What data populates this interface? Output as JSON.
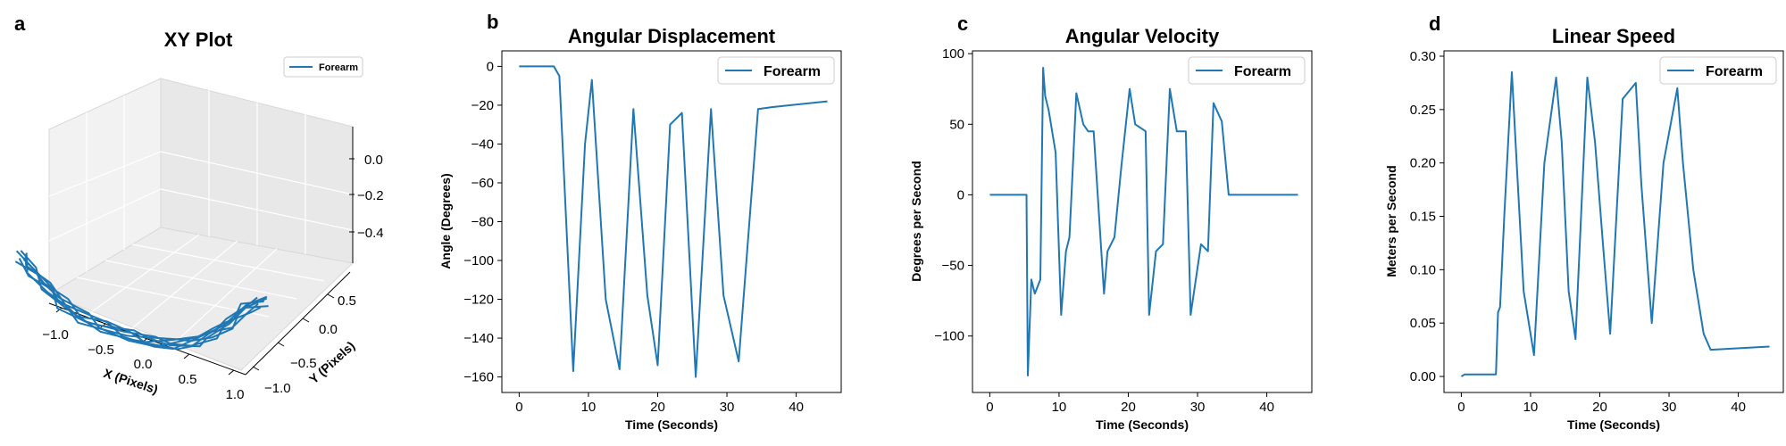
{
  "figure": {
    "line_color": "#1f77b4",
    "panels": [
      {
        "letter": "a",
        "title": "XY Plot",
        "legend": "Forearm"
      },
      {
        "letter": "b",
        "title": "Angular Displacement",
        "legend": "Forearm"
      },
      {
        "letter": "c",
        "title": "Angular Velocity",
        "legend": "Forearm"
      },
      {
        "letter": "d",
        "title": "Linear Speed",
        "legend": "Forearm"
      }
    ]
  },
  "chart_data": [
    {
      "type": "line",
      "subtype": "3d",
      "title": "XY Plot",
      "xlabel": "X (Pixels)",
      "ylabel": "Y (Pixels)",
      "zlabel": "",
      "xlim": [
        -1.0,
        1.0
      ],
      "ylim": [
        -1.0,
        0.5
      ],
      "zlim": [
        -0.5,
        0.1
      ],
      "xticks": [
        "−1.0",
        "−0.5",
        "0.0",
        "0.5",
        "1.0"
      ],
      "yticks": [
        "−1.0",
        "−0.5",
        "0.0",
        "0.5"
      ],
      "zticks": [
        "0.0",
        "−0.2",
        "−0.4"
      ],
      "legend": "top-right",
      "series": [
        {
          "name": "Forearm",
          "note_shape": "U-shaped trajectory, repeated passes",
          "x": [
            -0.95,
            -0.9,
            -0.8,
            -0.7,
            -0.55,
            -0.4,
            -0.2,
            0.0,
            0.2,
            0.4,
            0.55,
            0.7,
            0.85,
            1.0
          ],
          "y": [
            -0.6,
            -0.5,
            -0.4,
            -0.3,
            -0.2,
            -0.1,
            0.0,
            0.05,
            0.1,
            0.15,
            0.2,
            0.25,
            0.3,
            0.35
          ],
          "z": [
            0.05,
            -0.05,
            -0.15,
            -0.25,
            -0.33,
            -0.38,
            -0.42,
            -0.43,
            -0.42,
            -0.38,
            -0.32,
            -0.25,
            -0.15,
            -0.1
          ]
        }
      ]
    },
    {
      "type": "line",
      "title": "Angular Displacement",
      "xlabel": "Time (Seconds)",
      "ylabel": "Angle (Degrees)",
      "xlim": [
        -2.5,
        46.5
      ],
      "ylim": [
        -168,
        8
      ],
      "xticks": [
        0,
        10,
        20,
        30,
        40
      ],
      "yticks": [
        0,
        -20,
        -40,
        -60,
        -80,
        -100,
        -120,
        -140,
        -160
      ],
      "ytick_labels": [
        "0",
        "−20",
        "−40",
        "−60",
        "−80",
        "−100",
        "−120",
        "−140",
        "−160"
      ],
      "grid": false,
      "legend": "top-right",
      "series": [
        {
          "name": "Forearm",
          "x": [
            0,
            5,
            5.8,
            7.8,
            9.5,
            10.5,
            12.5,
            14.5,
            16.5,
            18.5,
            20,
            21.8,
            23.5,
            25.5,
            27.7,
            29.5,
            31.7,
            34.5,
            36.5,
            44.5
          ],
          "y": [
            0,
            0,
            -5,
            -157,
            -40,
            -7,
            -120,
            -156,
            -22,
            -118,
            -154,
            -30,
            -24,
            -160,
            -22,
            -118,
            -152,
            -22,
            -21,
            -18
          ]
        }
      ]
    },
    {
      "type": "line",
      "title": "Angular Velocity",
      "xlabel": "Time (Seconds)",
      "ylabel": "Degrees per Second",
      "xlim": [
        -2.5,
        46.5
      ],
      "ylim": [
        -140,
        102
      ],
      "xticks": [
        0,
        10,
        20,
        30,
        40
      ],
      "yticks": [
        100,
        50,
        0,
        -50,
        -100
      ],
      "ytick_labels": [
        "100",
        "50",
        "0",
        "−50",
        "−100"
      ],
      "grid": false,
      "legend": "top-right",
      "series": [
        {
          "name": "Forearm",
          "x": [
            0,
            5.3,
            5.5,
            6,
            6.5,
            7.3,
            7.7,
            8,
            8.5,
            9.5,
            10.3,
            11,
            11.5,
            12,
            12.5,
            13.5,
            14.2,
            15,
            16.5,
            17,
            18,
            19,
            20.2,
            21,
            22.5,
            23,
            24,
            25,
            26,
            27,
            28.3,
            29,
            30.5,
            31.5,
            32.3,
            33.5,
            34.5,
            36,
            44.5
          ],
          "y": [
            0,
            0,
            -128,
            -60,
            -70,
            -60,
            90,
            70,
            60,
            30,
            -85,
            -40,
            -30,
            20,
            72,
            50,
            45,
            45,
            -70,
            -40,
            -30,
            20,
            75,
            50,
            45,
            -85,
            -40,
            -35,
            75,
            45,
            45,
            -85,
            -35,
            -40,
            65,
            52,
            0,
            0,
            0
          ]
        }
      ]
    },
    {
      "type": "line",
      "title": "Linear Speed",
      "xlabel": "Time (Seconds)",
      "ylabel": "Meters per Second",
      "xlim": [
        -2.5,
        46.5
      ],
      "ylim": [
        -0.015,
        0.305
      ],
      "xticks": [
        0,
        10,
        20,
        30,
        40
      ],
      "yticks": [
        0.0,
        0.05,
        0.1,
        0.15,
        0.2,
        0.25,
        0.3
      ],
      "ytick_labels": [
        "0.00",
        "0.05",
        "0.10",
        "0.15",
        "0.20",
        "0.25",
        "0.30"
      ],
      "grid": false,
      "legend": "top-right",
      "series": [
        {
          "name": "Forearm",
          "x": [
            0,
            0.5,
            5,
            5.3,
            5.6,
            6.2,
            7.3,
            8,
            9,
            10.5,
            12,
            13.7,
            14.5,
            15.5,
            16.5,
            18.2,
            19.3,
            20.5,
            21.5,
            23.3,
            25.2,
            26,
            27.5,
            29.2,
            31.2,
            32,
            33.5,
            35,
            36,
            44.5
          ],
          "y": [
            0,
            0.002,
            0.002,
            0.06,
            0.065,
            0.15,
            0.285,
            0.2,
            0.08,
            0.02,
            0.2,
            0.28,
            0.22,
            0.08,
            0.035,
            0.28,
            0.22,
            0.12,
            0.04,
            0.26,
            0.275,
            0.18,
            0.05,
            0.2,
            0.27,
            0.2,
            0.1,
            0.04,
            0.025,
            0.028
          ]
        }
      ]
    }
  ]
}
